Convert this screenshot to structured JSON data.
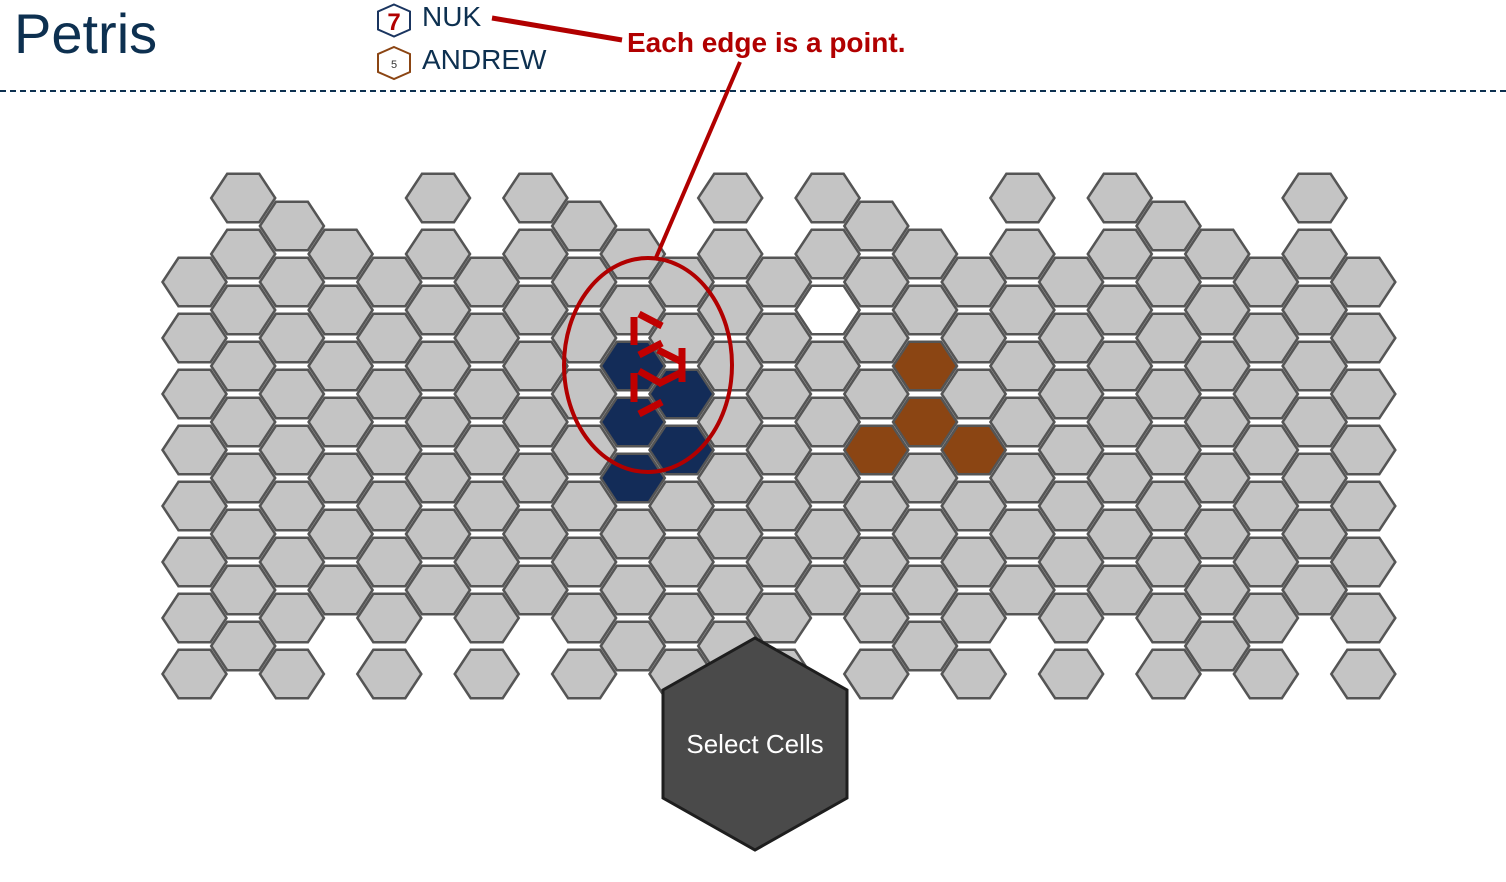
{
  "app": {
    "title": "Petris"
  },
  "players": [
    {
      "name": "NUK",
      "score": "7",
      "color": "#1a3560",
      "score_color": "#b10000"
    },
    {
      "name": "ANDREW",
      "score": "5",
      "color": "#8b4513",
      "score_color": "#333333"
    }
  ],
  "annotation": {
    "text": "Each edge is a point.",
    "color": "#b10000"
  },
  "board": {
    "cell_fill": "#c4c4c4",
    "cell_stroke": "#555555",
    "player1_fill": "#132c58",
    "player2_fill": "#8b4513",
    "empty_fill": "#ffffff"
  },
  "action_button": {
    "label": "Select Cells",
    "fill": "#4a4a4a",
    "stroke": "#1e1e1e"
  }
}
